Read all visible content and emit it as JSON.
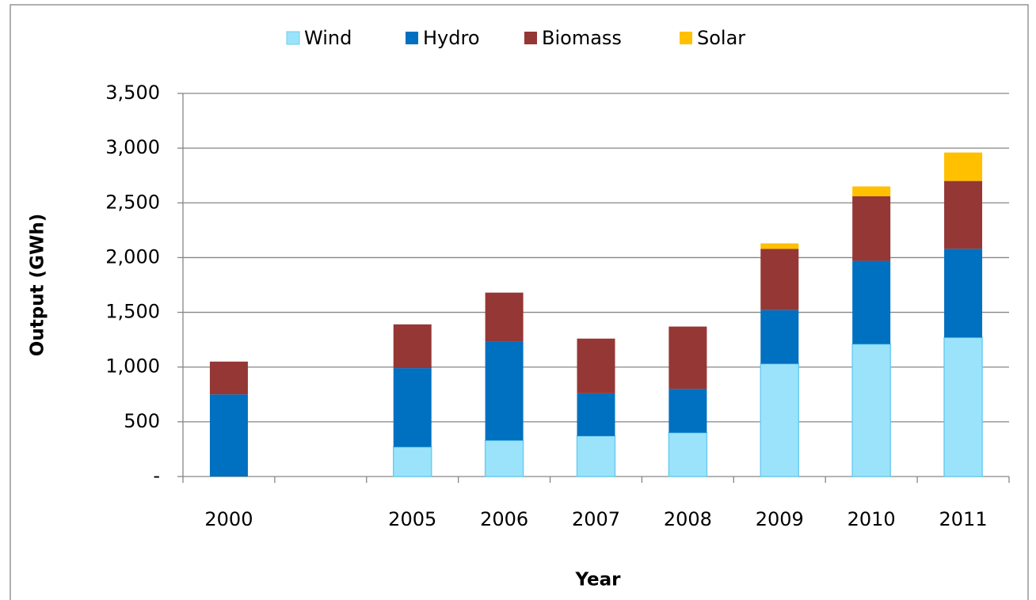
{
  "chart_data": {
    "type": "bar",
    "stacked": true,
    "x_label": "Year",
    "y_label": "Output (GWh)",
    "categories": [
      "2000",
      null,
      "2005",
      "2006",
      "2007",
      "2008",
      "2009",
      "2010",
      "2011"
    ],
    "series": [
      {
        "name": "Wind",
        "color": "#9be3fb",
        "values": [
          0,
          null,
          270,
          330,
          370,
          400,
          1030,
          1210,
          1270
        ]
      },
      {
        "name": "Hydro",
        "color": "#0070c0",
        "values": [
          750,
          null,
          720,
          900,
          390,
          400,
          490,
          760,
          810
        ]
      },
      {
        "name": "Biomass",
        "color": "#953735",
        "values": [
          300,
          null,
          400,
          450,
          500,
          570,
          560,
          590,
          620
        ]
      },
      {
        "name": "Solar",
        "color": "#ffc000",
        "values": [
          0,
          null,
          0,
          0,
          0,
          0,
          50,
          90,
          260
        ]
      }
    ],
    "ylim": [
      0,
      3500
    ],
    "yticks": [
      {
        "value": 0,
        "label": "-"
      },
      500,
      {
        "value": 1000,
        "label": "1,000"
      },
      {
        "value": 1500,
        "label": "1,500"
      },
      {
        "value": 2000,
        "label": "2,000"
      },
      {
        "value": 2500,
        "label": "2,500"
      },
      {
        "value": 3000,
        "label": "3,000"
      },
      {
        "value": 3500,
        "label": "3,500"
      }
    ],
    "grid": true,
    "legend": "top"
  }
}
